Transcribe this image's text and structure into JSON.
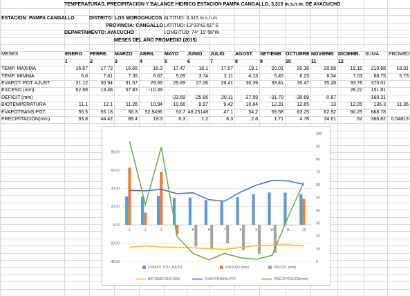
{
  "title": "TEMPERATURAS, PRECIPITACIÓN Y BALANCE HÍDRICO ESTACIÓN PAMPA CANGALLO, 3,315 m.s.n.m. DE AYACUCHO",
  "info": {
    "estacion": "ESTACIÓN: PAMPA CANGALLO",
    "distrito": "DISTRITO: LOS MOROCHUCOS",
    "provincia": "PROVINCIA: CANGALLO",
    "departamento": "DEPARTAMENTO: AYACUCHO",
    "altitud": "ALTITUD: 3,315 m.s.n.m.",
    "latitud": "LATITUD:     13°33'42.61\" S",
    "longitud": "LONGITUD:  74° 11' 56\"W",
    "subtitle": "MESES DEL AÑO PROMEDIO (2015)"
  },
  "table": {
    "row_header": "MESES",
    "months": [
      "ENERO",
      "FEBRE.",
      "MARZO",
      "ABRIL",
      "MAYO",
      "JUNIO",
      "JULIO",
      "AGOST.",
      "SETIEMB",
      "OCTUBRE",
      "NOVIEMB",
      "DICIEMB."
    ],
    "month_numbers": [
      "1",
      "2",
      "3",
      "4",
      "5",
      "6",
      "7",
      "8",
      "9",
      "10",
      "11",
      "12"
    ],
    "extra_headers": [
      "SUMA",
      "PROMEDIO"
    ],
    "rows": [
      {
        "label": "TEMP. MÁXIMA",
        "values": [
          "16.67",
          "17.72",
          "16.65",
          "16.3",
          "17.47",
          "18.1",
          "17.57",
          "19.1",
          "20.01",
          "20.16",
          "20.58",
          "19.15"
        ],
        "suma": "219.68",
        "prom": "18.31"
      },
      {
        "label": "TEMP. MÍNIMA",
        "values": [
          "6.8",
          "7.81",
          "7.35",
          "6.67",
          "5.09",
          "3.74",
          "2.11",
          "4.13",
          "5.45",
          "6.23",
          "6.34",
          "7.03"
        ],
        "suma": "68.75",
        "prom": "5.73"
      },
      {
        "label": "EVAPOT. POT. AJUST.",
        "values": [
          "31.12",
          "30.94",
          "31.57",
          "29.69",
          "29.89",
          "27.06",
          "26.41",
          "30.39",
          "33.41",
          "35.47",
          "35.28",
          "33.78"
        ],
        "suma": "375.01",
        "prom": ""
      },
      {
        "label": "EXCESO (mm)",
        "values": [
          "62.68",
          "13.48",
          "57.83",
          "-10.39",
          "",
          "",
          "",
          "",
          "",
          "",
          "",
          ""
        ],
        "suma": "28.22",
        "prom": "151.81",
        "shift": true
      },
      {
        "label": "DÉFICIT (mm)",
        "values": [
          "",
          "",
          "",
          "",
          "-23.59",
          "-25.86",
          "-20.11",
          "-27.59",
          "-31.70",
          "-30.69",
          "-0.67",
          ""
        ],
        "suma": "",
        "prom": "-160.21",
        "shift": true
      },
      {
        "label": "BIOTEMPERATURA",
        "values": [
          "11.1",
          "12.1",
          "11.26",
          "10.94",
          "10.66",
          "9.97",
          "9.42",
          "10.84",
          "12.31",
          "12.65",
          "13",
          "12.05"
        ],
        "suma": "136.3",
        "prom": "11.36"
      },
      {
        "label": "EVAPOTRANS.POT.",
        "values": [
          "55.5",
          "55.18",
          "56.3",
          "52.9496",
          "53.7",
          "48.25148",
          "47.1",
          "54.2",
          "59.58",
          "63.25",
          "62.92",
          "60.25"
        ],
        "suma": "668.78",
        "prom": ""
      },
      {
        "label": "PRECIPITACIÓN(mm)",
        "values": [
          "93.8",
          "44.42",
          "89.4",
          "19.3",
          "6.3",
          "1.2",
          "6.3",
          "2.8",
          "1.71",
          "4.78",
          "34.61",
          "62"
        ],
        "suma": "366.62",
        "prom": "0.54819"
      }
    ]
  },
  "chart_data": {
    "type": "bar",
    "title": "",
    "xlabel": "",
    "ylabel": "",
    "categories": [
      "1",
      "2",
      "3",
      "4",
      "5",
      "6",
      "7",
      "8",
      "9",
      "10",
      "11",
      "12"
    ],
    "ylim_left": [
      -40,
      100
    ],
    "yticks_left": [
      "80.00",
      "60.00",
      "40.00",
      "20.00",
      "0.00",
      "-20.00",
      "-40.00"
    ],
    "ylim_right": [
      0,
      100
    ],
    "yticks_right": [
      "100",
      "90",
      "80",
      "70",
      "60",
      "50",
      "40",
      "30",
      "20",
      "10",
      "0"
    ],
    "series": [
      {
        "name": "EVAPOT. POT. AJUST.",
        "kind": "bar",
        "color": "#5b9bd5",
        "values": [
          31.12,
          30.94,
          31.57,
          29.69,
          29.89,
          27.06,
          26.41,
          30.39,
          33.41,
          35.47,
          35.28,
          33.78
        ]
      },
      {
        "name": "EXCESO (mm)",
        "kind": "bar",
        "color": "#ed7d31",
        "values": [
          62.68,
          13.48,
          57.83,
          -10.39,
          0,
          0,
          0,
          0,
          0,
          0,
          0,
          28.22
        ]
      },
      {
        "name": "DÉFICIT (mm)",
        "kind": "bar",
        "color": "#a5a5a5",
        "values": [
          0,
          0,
          0,
          0,
          -23.59,
          -25.86,
          -20.11,
          -27.59,
          -31.7,
          -30.69,
          -0.67,
          0
        ]
      },
      {
        "name": "BIOTEMPERATURA",
        "kind": "line",
        "color": "#ffc000",
        "values": [
          11.1,
          12.1,
          11.26,
          10.94,
          10.66,
          9.97,
          9.42,
          10.84,
          12.31,
          12.65,
          13,
          12.05
        ]
      },
      {
        "name": "EVAPOTRANS.POT.",
        "kind": "line",
        "color": "#4472c4",
        "values": [
          55.5,
          55.18,
          56.3,
          52.95,
          53.7,
          48.25,
          47.1,
          54.2,
          59.58,
          63.25,
          62.92,
          60.25
        ]
      },
      {
        "name": "PRECIPITACIÓN(mm)",
        "kind": "line",
        "color": "#70ad47",
        "values": [
          93.8,
          44.42,
          89.4,
          19.3,
          6.3,
          1.2,
          6.3,
          2.8,
          1.71,
          4.78,
          34.61,
          62
        ]
      }
    ],
    "legend": "bottom",
    "grid": true
  }
}
